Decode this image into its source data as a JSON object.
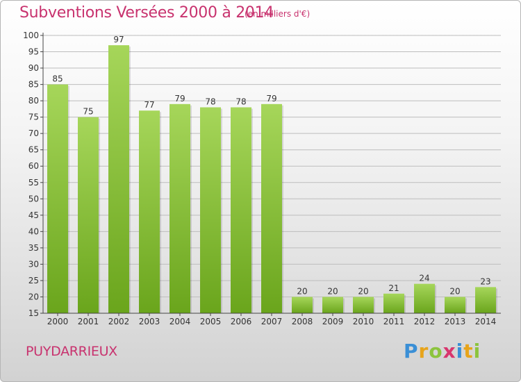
{
  "title": "Subventions Versées 2000 à 2014",
  "subtitle": "(en milliers d'€)",
  "commune": "PUYDARRIEUX",
  "logo": {
    "text": "Proxiti",
    "letters": [
      "P",
      "r",
      "o",
      "x",
      "i",
      "t",
      "i"
    ]
  },
  "colors": {
    "title": "#c8326e",
    "bar_light": "#a6d65a",
    "bar_dark": "#6aa51c",
    "axis": "#444444",
    "grid": "#bdbdbd"
  },
  "chart_data": {
    "type": "bar",
    "title": "Subventions Versées 2000 à 2014",
    "subtitle": "(en milliers d'€)",
    "categories": [
      "2000",
      "2001",
      "2002",
      "2003",
      "2004",
      "2005",
      "2006",
      "2007",
      "2008",
      "2009",
      "2010",
      "2011",
      "2012",
      "2013",
      "2014"
    ],
    "values": [
      85,
      75,
      97,
      77,
      79,
      78,
      78,
      79,
      20,
      20,
      20,
      21,
      24,
      20,
      23
    ],
    "ylim": [
      15,
      100
    ],
    "yticks": [
      15,
      20,
      25,
      30,
      35,
      40,
      45,
      50,
      55,
      60,
      65,
      70,
      75,
      80,
      85,
      90,
      95,
      100
    ],
    "grid": true,
    "data_labels": true,
    "legend": "none"
  }
}
